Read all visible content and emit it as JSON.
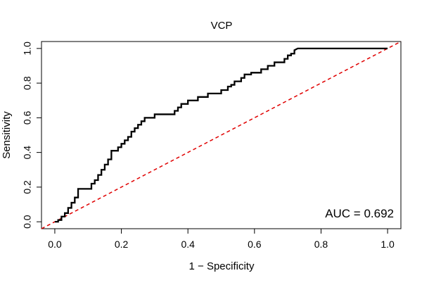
{
  "chart_data": {
    "type": "line",
    "title": "VCP",
    "xlabel": "1 − Specificity",
    "ylabel": "Sensitivity",
    "xlim": [
      -0.04,
      1.04
    ],
    "ylim": [
      -0.04,
      1.04
    ],
    "x_ticks": [
      0.0,
      0.2,
      0.4,
      0.6,
      0.8,
      1.0
    ],
    "x_tick_labels": [
      "0.0",
      "0.2",
      "0.4",
      "0.6",
      "0.8",
      "1.0"
    ],
    "y_ticks": [
      0.0,
      0.2,
      0.4,
      0.6,
      0.8,
      1.0
    ],
    "y_tick_labels": [
      "0.0",
      "0.2",
      "0.4",
      "0.6",
      "0.8",
      "1.0"
    ],
    "grid": false,
    "annotation": "AUC = 0.692",
    "series": [
      {
        "x": [
          0.0,
          0.01,
          0.01,
          0.02,
          0.02,
          0.03,
          0.03,
          0.04,
          0.04,
          0.05,
          0.05,
          0.06,
          0.06,
          0.07,
          0.07,
          0.11,
          0.11,
          0.12,
          0.12,
          0.13,
          0.13,
          0.14,
          0.14,
          0.15,
          0.15,
          0.16,
          0.16,
          0.17,
          0.17,
          0.19,
          0.19,
          0.2,
          0.2,
          0.21,
          0.21,
          0.22,
          0.22,
          0.23,
          0.23,
          0.24,
          0.24,
          0.25,
          0.25,
          0.26,
          0.26,
          0.27,
          0.27,
          0.3,
          0.3,
          0.36,
          0.36,
          0.37,
          0.37,
          0.38,
          0.38,
          0.4,
          0.4,
          0.43,
          0.43,
          0.46,
          0.46,
          0.5,
          0.5,
          0.52,
          0.52,
          0.53,
          0.53,
          0.54,
          0.54,
          0.56,
          0.56,
          0.57,
          0.57,
          0.59,
          0.59,
          0.62,
          0.62,
          0.64,
          0.64,
          0.66,
          0.66,
          0.69,
          0.69,
          0.7,
          0.7,
          0.71,
          0.71,
          0.72,
          0.72,
          0.73,
          1.0
        ],
        "y": [
          0.0,
          0.0,
          0.01,
          0.01,
          0.03,
          0.03,
          0.05,
          0.05,
          0.08,
          0.08,
          0.11,
          0.11,
          0.14,
          0.14,
          0.19,
          0.19,
          0.22,
          0.22,
          0.24,
          0.24,
          0.27,
          0.27,
          0.3,
          0.3,
          0.33,
          0.33,
          0.36,
          0.36,
          0.41,
          0.41,
          0.43,
          0.43,
          0.45,
          0.45,
          0.47,
          0.47,
          0.49,
          0.49,
          0.52,
          0.52,
          0.54,
          0.54,
          0.56,
          0.56,
          0.58,
          0.58,
          0.6,
          0.6,
          0.62,
          0.62,
          0.64,
          0.64,
          0.66,
          0.66,
          0.68,
          0.68,
          0.7,
          0.7,
          0.72,
          0.72,
          0.74,
          0.74,
          0.76,
          0.76,
          0.78,
          0.78,
          0.79,
          0.79,
          0.81,
          0.81,
          0.83,
          0.83,
          0.85,
          0.85,
          0.86,
          0.86,
          0.88,
          0.88,
          0.9,
          0.9,
          0.92,
          0.92,
          0.94,
          0.94,
          0.96,
          0.96,
          0.97,
          0.97,
          0.99,
          1.0,
          1.0
        ],
        "color": "#000000",
        "style": "solid-step"
      },
      {
        "x": [
          -0.04,
          1.04
        ],
        "y": [
          -0.04,
          1.04
        ],
        "color": "#e00000",
        "style": "dashed"
      }
    ]
  }
}
